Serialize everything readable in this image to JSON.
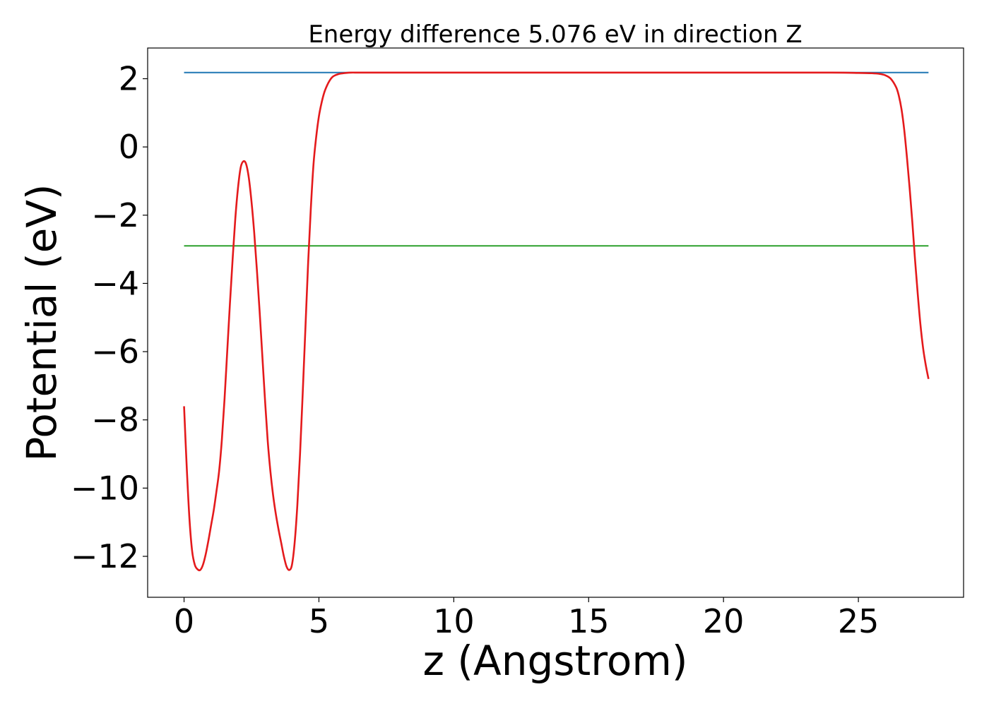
{
  "chart_data": {
    "type": "line",
    "title": "Energy difference 5.076 eV in direction Z",
    "xlabel": "z (Angstrom)",
    "ylabel": "Potential (eV)",
    "xlim": [
      -1.35,
      28.9
    ],
    "ylim": [
      -13.2,
      2.9
    ],
    "xticks": [
      0,
      5,
      10,
      15,
      20,
      25
    ],
    "xtick_labels": [
      "0",
      "5",
      "10",
      "15",
      "20",
      "25"
    ],
    "yticks": [
      2,
      0,
      -2,
      -4,
      -6,
      -8,
      -10,
      -12
    ],
    "ytick_labels": [
      "2",
      "0",
      "−2",
      "−4",
      "−6",
      "−8",
      "−10",
      "−12"
    ],
    "grid": false,
    "legend": "none",
    "series": [
      {
        "color": "#1f77b4",
        "x": [
          0,
          27.6
        ],
        "y": [
          2.18,
          2.18
        ]
      },
      {
        "color": "#2ca02c",
        "x": [
          0,
          27.6
        ],
        "y": [
          -2.9,
          -2.9
        ]
      },
      {
        "color": "#e41a1c",
        "x": [
          0,
          0.1,
          0.2,
          0.3,
          0.4,
          0.5,
          0.6,
          0.7,
          0.8,
          0.9,
          1.0,
          1.1,
          1.2,
          1.3,
          1.4,
          1.5,
          1.6,
          1.7,
          1.8,
          1.9,
          2.0,
          2.1,
          2.2,
          2.3,
          2.4,
          2.5,
          2.6,
          2.7,
          2.8,
          2.9,
          3.0,
          3.1,
          3.2,
          3.3,
          3.4,
          3.5,
          3.6,
          3.7,
          3.8,
          3.9,
          4.0,
          4.1,
          4.2,
          4.3,
          4.4,
          4.5,
          4.6,
          4.7,
          4.8,
          4.9,
          5.0,
          5.1,
          5.2,
          5.3,
          5.4,
          5.5,
          5.6,
          5.7,
          5.8,
          5.9,
          6.0,
          6.2,
          6.4,
          6.6,
          6.8,
          7.0,
          7.3,
          7.6,
          8.0,
          9.0,
          10.0,
          12.0,
          15.0,
          18.0,
          21.0,
          24.0,
          25.0,
          25.5,
          25.8,
          26.0,
          26.2,
          26.4,
          26.5,
          26.6,
          26.7,
          26.8,
          26.9,
          27.0,
          27.1,
          27.2,
          27.3,
          27.4,
          27.5,
          27.6
        ],
        "y": [
          -7.6,
          -9.4,
          -10.9,
          -11.85,
          -12.25,
          -12.38,
          -12.4,
          -12.25,
          -11.95,
          -11.55,
          -11.1,
          -10.65,
          -10.1,
          -9.5,
          -8.6,
          -7.4,
          -6.0,
          -4.6,
          -3.3,
          -2.1,
          -1.2,
          -0.6,
          -0.42,
          -0.5,
          -0.9,
          -1.6,
          -2.5,
          -3.6,
          -4.8,
          -6.1,
          -7.4,
          -8.6,
          -9.5,
          -10.2,
          -10.75,
          -11.2,
          -11.6,
          -12.0,
          -12.3,
          -12.4,
          -12.25,
          -11.6,
          -10.5,
          -9.0,
          -7.2,
          -5.3,
          -3.4,
          -1.8,
          -0.5,
          0.3,
          0.9,
          1.3,
          1.6,
          1.8,
          1.95,
          2.05,
          2.1,
          2.13,
          2.15,
          2.16,
          2.17,
          2.18,
          2.18,
          2.18,
          2.18,
          2.18,
          2.18,
          2.18,
          2.18,
          2.18,
          2.18,
          2.18,
          2.18,
          2.18,
          2.18,
          2.18,
          2.17,
          2.16,
          2.14,
          2.1,
          2.0,
          1.75,
          1.5,
          1.1,
          0.5,
          -0.3,
          -1.2,
          -2.2,
          -3.3,
          -4.3,
          -5.2,
          -5.9,
          -6.4,
          -6.8
        ]
      }
    ]
  }
}
